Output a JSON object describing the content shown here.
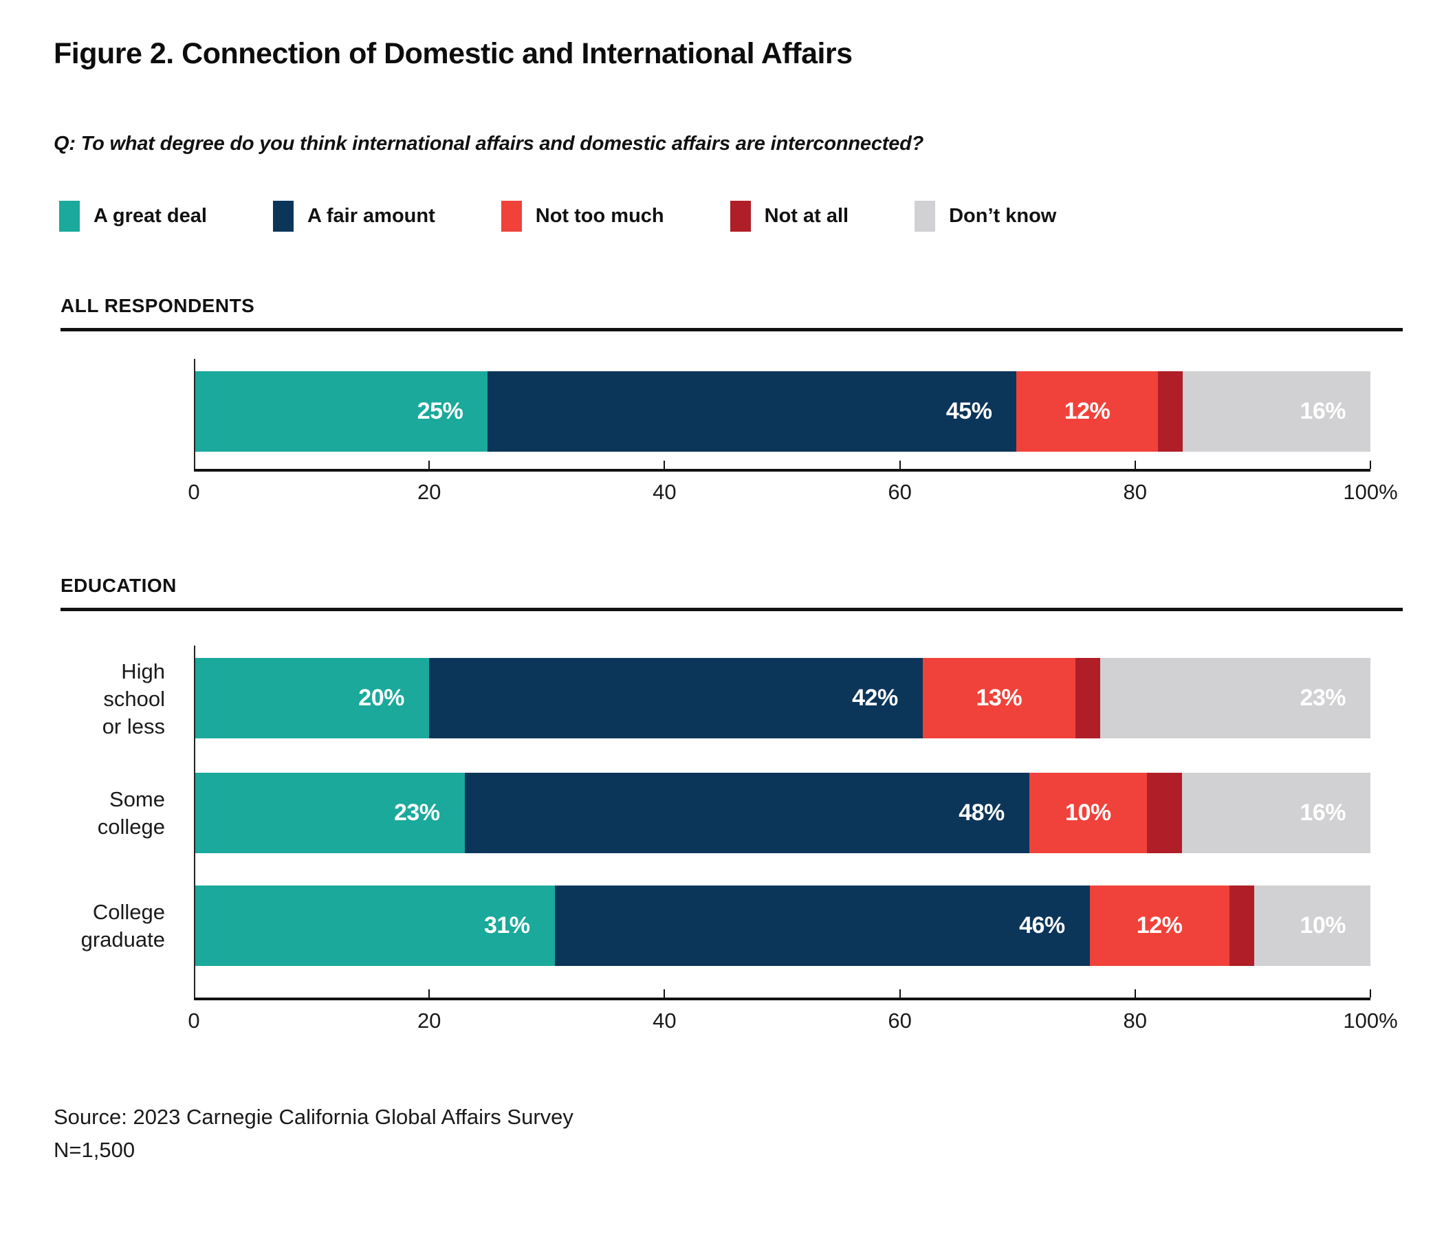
{
  "page": {
    "title": "Figure 2. Connection of Domestic and International Affairs",
    "question": "Q: To what degree do you think international affairs and domestic affairs are interconnected?",
    "source": "Source: 2023 Carnegie California Global Affairs Survey",
    "sample_size": "N=1,500"
  },
  "legend": {
    "items": [
      {
        "label": "A great deal",
        "color": "#1AA99B"
      },
      {
        "label": "A fair amount",
        "color": "#0C355A"
      },
      {
        "label": "Not too much",
        "color": "#F0423A"
      },
      {
        "label": "Not at all",
        "color": "#B01E28"
      },
      {
        "label": "Don’t know",
        "color": "#D1D1D3"
      }
    ]
  },
  "chart_data": {
    "type": "bar",
    "orientation": "horizontal",
    "stacked": true,
    "unit": "percent",
    "title": "Figure 2. Connection of Domestic and International Affairs",
    "series_names": [
      "A great deal",
      "A fair amount",
      "Not too much",
      "Not at all",
      "Don’t know"
    ],
    "series_colors": [
      "#1AA99B",
      "#0C355A",
      "#F0423A",
      "#B01E28",
      "#D1D1D3"
    ],
    "x_axis": {
      "range": [
        0,
        100
      ],
      "tick_values": [
        0,
        20,
        40,
        60,
        80,
        100
      ],
      "tick_labels": [
        "0",
        "20",
        "40",
        "60",
        "80",
        "100%"
      ]
    },
    "groups": [
      {
        "heading": "ALL RESPONDENTS",
        "rows": [
          {
            "category": "",
            "category_lines": [],
            "values": [
              25,
              45,
              12,
              2,
              16
            ],
            "value_labels": [
              "25%",
              "45%",
              "12%",
              "",
              "16%"
            ]
          }
        ]
      },
      {
        "heading": "EDUCATION",
        "rows": [
          {
            "category": "High school or less",
            "category_lines": [
              "High school",
              "or less"
            ],
            "values": [
              20,
              42,
              13,
              2,
              23
            ],
            "value_labels": [
              "20%",
              "42%",
              "13%",
              "",
              "23%"
            ]
          },
          {
            "category": "Some college",
            "category_lines": [
              "Some college"
            ],
            "values": [
              23,
              48,
              10,
              3,
              16
            ],
            "value_labels": [
              "23%",
              "48%",
              "10%",
              "",
              "16%"
            ]
          },
          {
            "category": "College graduate",
            "category_lines": [
              "College",
              "graduate"
            ],
            "values": [
              31,
              46,
              12,
              1,
              10
            ],
            "value_labels": [
              "31%",
              "46%",
              "12%",
              "",
              "10%"
            ]
          }
        ]
      }
    ]
  }
}
